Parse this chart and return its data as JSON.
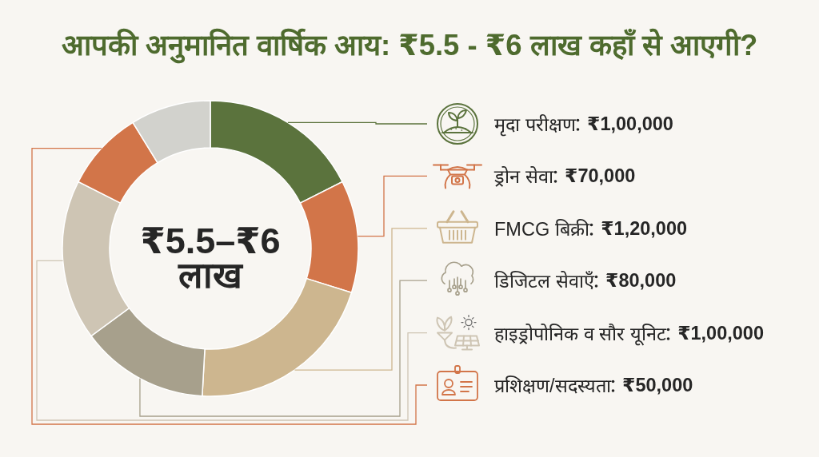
{
  "chart_data": {
    "type": "donut",
    "title": "आपकी अनुमानित वार्षिक आय: ₹5.5 - ₹6 लाख कहाँ से आएगी?",
    "categories": [
      "मृदा परीक्षण",
      "ड्रोन सेवा",
      "FMCG बिक्री",
      "डिजिटल सेवाएँ",
      "हाइड्रोपोनिक व सौर यूनिट",
      "प्रशिक्षण/सदस्यता",
      null
    ],
    "values": [
      100000,
      70000,
      120000,
      80000,
      100000,
      50000,
      50000
    ],
    "value_labels": [
      "₹1,00,000",
      "₹70,000",
      "₹1,20,000",
      "₹80,000",
      "₹1,00,000",
      "₹50,000",
      null
    ],
    "colors": [
      "#5b733d",
      "#d27549",
      "#cdb68f",
      "#a7a08c",
      "#cec5b4",
      "#d27549",
      "#d2d2cd"
    ],
    "annotations": [
      "₹5.5–₹6 लाख"
    ],
    "legend": "right"
  }
}
